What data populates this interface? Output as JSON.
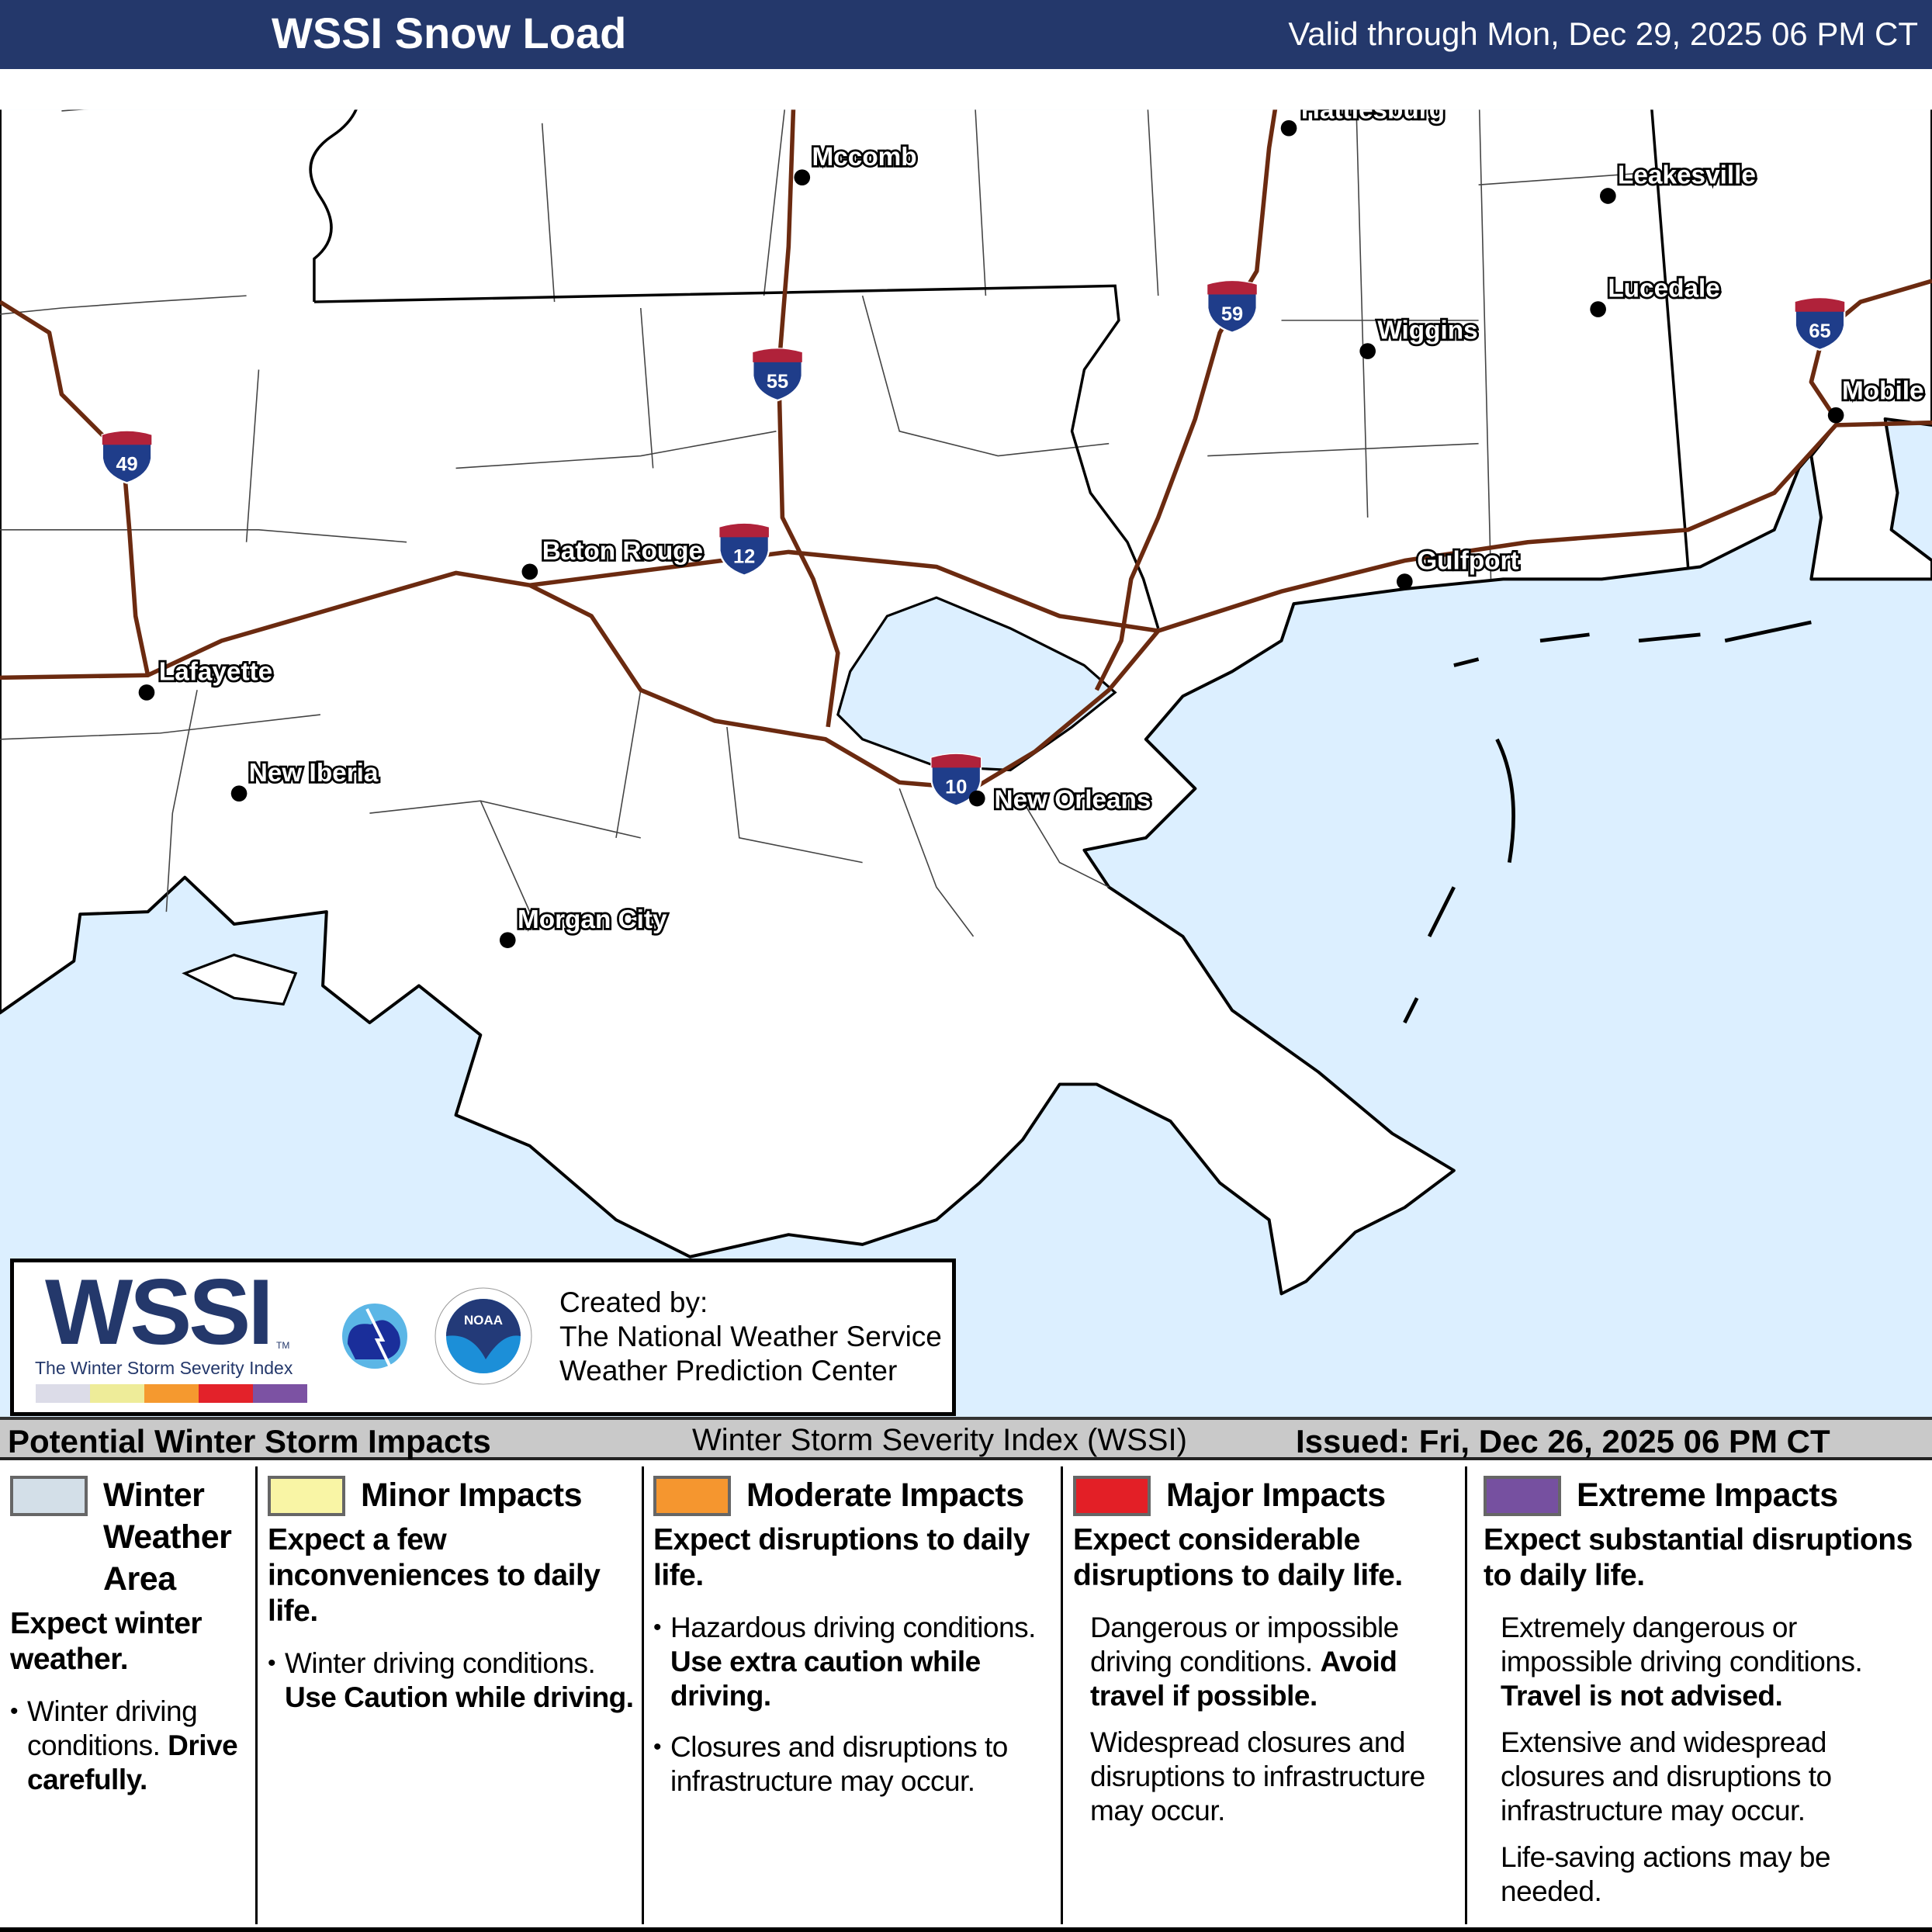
{
  "header": {
    "title": "WSSI Snow Load",
    "valid": "Valid through Mon, Dec 29, 2025 06 PM CT"
  },
  "map": {
    "colors": {
      "water": "#dcefff",
      "land": "#ffffff",
      "interstate": "#6b2a10",
      "shield_blue": "#1f3d8a",
      "shield_red": "#b0223a"
    },
    "cities": [
      "Hattiesburg",
      "Mccomb",
      "Leakesville",
      "Lucedale",
      "Wiggins",
      "Mobile",
      "Baton Rouge",
      "Gulfport",
      "Lafayette",
      "New Iberia",
      "New Orleans",
      "Morgan City"
    ],
    "interstates": [
      "49",
      "55",
      "12",
      "59",
      "65",
      "10"
    ]
  },
  "logo": {
    "wssi": "WSSI",
    "tm": "TM",
    "tagline": "The Winter Storm Severity Index",
    "nws": "NATIONAL WEATHER SERVICE",
    "noaa": "NOAA",
    "credit1": "Created by:",
    "credit2": "The National Weather Service",
    "credit3": "Weather Prediction Center"
  },
  "legend": {
    "title": "Potential Winter Storm Impacts",
    "subtitle": "Winter Storm Severity Index (WSSI)",
    "issued": "Issued: Fri, Dec 26, 2025 06 PM CT",
    "categories": [
      {
        "name": "Winter Weather Area",
        "color": "#d3dfe8",
        "desc": "Expect winter weather.",
        "b1": "Winter driving conditions.",
        "b1_bold": "Drive carefully."
      },
      {
        "name": "Minor Impacts",
        "color": "#f9f5a5",
        "desc": "Expect a few inconveniences to daily life.",
        "b1": "Winter driving conditions.",
        "b1_bold": "Use Caution while driving."
      },
      {
        "name": "Moderate Impacts",
        "color": "#f5962f",
        "desc": "Expect disruptions to daily life.",
        "b1": "Hazardous driving conditions.",
        "b1_bold": "Use extra caution while driving.",
        "b2": "Closures and disruptions to infrastructure may occur."
      },
      {
        "name": "Major Impacts",
        "color": "#e31f26",
        "desc": "Expect considerable disruptions to daily life.",
        "b1": "Dangerous or impossible driving conditions.",
        "b1_bold": "Avoid travel if possible.",
        "b2": "Widespread closures and disruptions to infrastructure may occur."
      },
      {
        "name": "Extreme Impacts",
        "color": "#7650a0",
        "desc": "Expect substantial disruptions to daily life.",
        "b1": "Extremely dangerous or impossible driving conditions.",
        "b1_bold": "Travel is not advised.",
        "b2": "Extensive and widespread closures and disruptions to infrastructure may occur.",
        "b3": "Life-saving actions may be needed."
      }
    ]
  }
}
